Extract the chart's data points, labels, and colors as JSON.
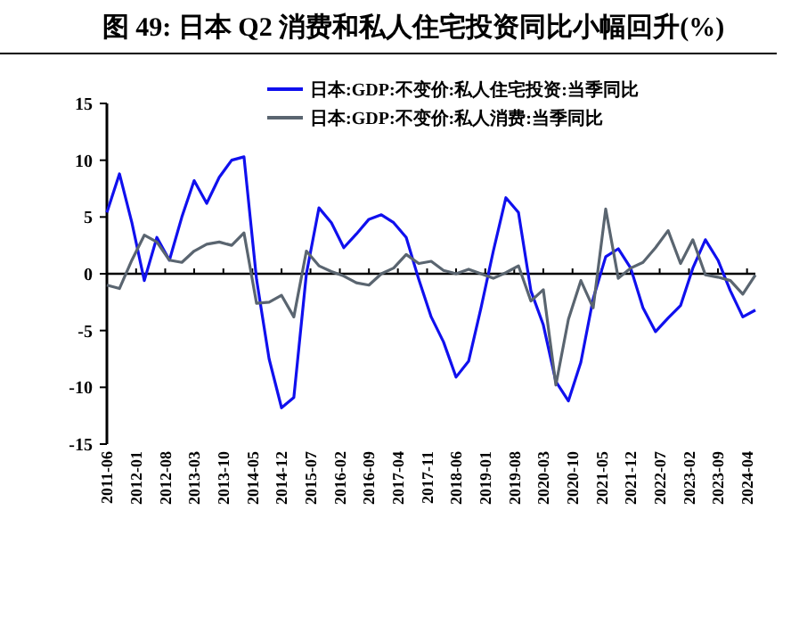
{
  "chart_data": {
    "type": "line",
    "title": "图 49: 日本 Q2 消费和私人住宅投资同比小幅回升(%)",
    "x": [
      "2011-06",
      "2011-09",
      "2011-12",
      "2012-03",
      "2012-06",
      "2012-09",
      "2012-12",
      "2013-03",
      "2013-06",
      "2013-09",
      "2013-12",
      "2014-03",
      "2014-06",
      "2014-09",
      "2014-12",
      "2015-03",
      "2015-06",
      "2015-09",
      "2015-12",
      "2016-03",
      "2016-06",
      "2016-09",
      "2016-12",
      "2017-03",
      "2017-06",
      "2017-09",
      "2017-12",
      "2018-03",
      "2018-06",
      "2018-09",
      "2018-12",
      "2019-03",
      "2019-06",
      "2019-09",
      "2019-12",
      "2020-03",
      "2020-06",
      "2020-09",
      "2020-12",
      "2021-03",
      "2021-06",
      "2021-09",
      "2021-12",
      "2022-03",
      "2022-06",
      "2022-09",
      "2022-12",
      "2023-03",
      "2023-06",
      "2023-09",
      "2023-12",
      "2024-03",
      "2024-06"
    ],
    "series": [
      {
        "name": "日本:GDP:不变价:私人住宅投资:当季同比",
        "color": "#1010ee",
        "values": [
          5.4,
          8.8,
          4.5,
          -0.6,
          3.2,
          1.2,
          5.0,
          8.2,
          6.2,
          8.5,
          10.0,
          10.3,
          -0.5,
          -7.5,
          -11.8,
          -10.9,
          0.0,
          5.8,
          4.5,
          2.3,
          3.5,
          4.8,
          5.2,
          4.5,
          3.2,
          -0.5,
          -3.8,
          -6.0,
          -9.1,
          -7.7,
          -3.0,
          2.0,
          6.7,
          5.4,
          -1.5,
          -4.5,
          -9.5,
          -11.2,
          -7.8,
          -2.2,
          1.5,
          2.2,
          0.5,
          -3.0,
          -5.1,
          -3.9,
          -2.8,
          0.5,
          3.0,
          1.2,
          -1.5,
          -3.8,
          -3.2
        ]
      },
      {
        "name": "日本:GDP:不变价:私人消费:当季同比",
        "color": "#5a6570",
        "values": [
          -1.0,
          -1.3,
          1.2,
          3.4,
          2.8,
          1.2,
          1.0,
          2.0,
          2.6,
          2.8,
          2.5,
          3.6,
          -2.6,
          -2.5,
          -1.9,
          -3.8,
          2.0,
          0.7,
          0.2,
          -0.2,
          -0.8,
          -1.0,
          0.0,
          0.5,
          1.7,
          0.9,
          1.1,
          0.3,
          0.0,
          0.4,
          0.0,
          -0.4,
          0.1,
          0.7,
          -2.4,
          -1.4,
          -9.8,
          -4.0,
          -0.6,
          -3.0,
          5.7,
          -0.4,
          0.5,
          1.0,
          2.3,
          3.8,
          0.9,
          3.0,
          -0.1,
          -0.3,
          -0.6,
          -1.8,
          -0.1
        ]
      }
    ],
    "xlim": [
      "2011-06",
      "2024-06"
    ],
    "xticks": [
      "2011-06",
      "2012-01",
      "2012-08",
      "2013-03",
      "2013-10",
      "2014-05",
      "2014-12",
      "2015-07",
      "2016-02",
      "2016-09",
      "2017-04",
      "2017-11",
      "2018-06",
      "2019-01",
      "2019-08",
      "2020-03",
      "2020-10",
      "2021-05",
      "2021-12",
      "2022-07",
      "2023-02",
      "2023-09",
      "2024-04"
    ],
    "ylim": [
      -15,
      15
    ],
    "yticks": [
      -15,
      -10,
      -5,
      0,
      5,
      10,
      15
    ],
    "ref_lines": [
      {
        "axis": "y",
        "value": 0,
        "color": "#000000"
      }
    ],
    "grid": false,
    "legend": "top",
    "line_style": "solid",
    "marker": "none"
  }
}
